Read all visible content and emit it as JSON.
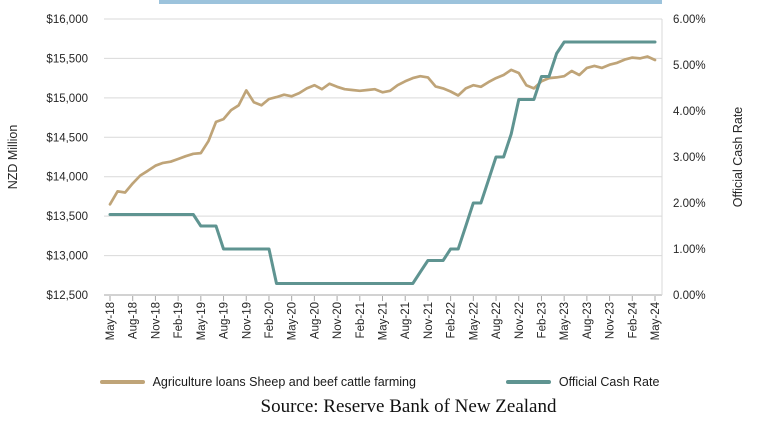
{
  "window": {
    "background": "#ffffff"
  },
  "header_bar": {
    "color": "#9cc3dc"
  },
  "chart_data": {
    "type": "line",
    "title": "",
    "x": {
      "frequency": "monthly",
      "start_label": "May-18",
      "end_label": "May-24",
      "tick_labels": [
        "May-18",
        "Aug-18",
        "Nov-18",
        "Feb-19",
        "May-19",
        "Aug-19",
        "Nov-19",
        "Feb-20",
        "May-20",
        "Aug-20",
        "Nov-20",
        "Feb-21",
        "May-21",
        "Aug-21",
        "Nov-21",
        "Feb-22",
        "May-22",
        "Aug-22",
        "Nov-22",
        "Feb-23",
        "May-23",
        "Aug-23",
        "Nov-23",
        "Feb-24",
        "May-24"
      ]
    },
    "left_axis": {
      "title": "NZD Million",
      "min": 12500,
      "max": 16000,
      "step": 500,
      "tick_labels": [
        "$16,000",
        "$15,500",
        "$15,000",
        "$14,500",
        "$14,000",
        "$13,500",
        "$13,000",
        "$12,500"
      ]
    },
    "right_axis": {
      "title": "Official Cash Rate",
      "min": 0,
      "max": 6,
      "step": 1,
      "tick_labels": [
        "6.00%",
        "5.00%",
        "4.00%",
        "3.00%",
        "2.00%",
        "1.00%",
        "0.00%"
      ]
    },
    "grid": true,
    "legend_position": "bottom",
    "series": [
      {
        "name": "Agriculture loans Sheep and beef cattle farming",
        "axis": "left",
        "color": "#bfa478",
        "values": [
          13650,
          13815,
          13800,
          13915,
          14015,
          14075,
          14140,
          14175,
          14190,
          14225,
          14260,
          14290,
          14300,
          14450,
          14695,
          14730,
          14845,
          14905,
          15095,
          14945,
          14905,
          14985,
          15010,
          15040,
          15020,
          15060,
          15120,
          15160,
          15110,
          15180,
          15140,
          15110,
          15100,
          15090,
          15100,
          15110,
          15070,
          15090,
          15160,
          15210,
          15250,
          15275,
          15260,
          15145,
          15120,
          15080,
          15030,
          15120,
          15160,
          15140,
          15200,
          15250,
          15290,
          15355,
          15315,
          15160,
          15120,
          15210,
          15250,
          15260,
          15275,
          15340,
          15290,
          15380,
          15405,
          15380,
          15420,
          15445,
          15485,
          15510,
          15500,
          15525,
          15480
        ]
      },
      {
        "name": "Official Cash Rate",
        "axis": "right",
        "color": "#5f9491",
        "values": [
          1.75,
          1.75,
          1.75,
          1.75,
          1.75,
          1.75,
          1.75,
          1.75,
          1.75,
          1.75,
          1.75,
          1.75,
          1.5,
          1.5,
          1.5,
          1.0,
          1.0,
          1.0,
          1.0,
          1.0,
          1.0,
          1.0,
          0.25,
          0.25,
          0.25,
          0.25,
          0.25,
          0.25,
          0.25,
          0.25,
          0.25,
          0.25,
          0.25,
          0.25,
          0.25,
          0.25,
          0.25,
          0.25,
          0.25,
          0.25,
          0.25,
          0.5,
          0.75,
          0.75,
          0.75,
          1.0,
          1.0,
          1.5,
          2.0,
          2.0,
          2.5,
          3.0,
          3.0,
          3.5,
          4.25,
          4.25,
          4.25,
          4.75,
          4.75,
          5.25,
          5.5,
          5.5,
          5.5,
          5.5,
          5.5,
          5.5,
          5.5,
          5.5,
          5.5,
          5.5,
          5.5,
          5.5,
          5.5
        ]
      }
    ]
  },
  "colors": {
    "gridline": "#d9d9d9",
    "axis": "#a6a6a6",
    "tick": "#a6a6a6",
    "text": "#262626"
  },
  "source": {
    "text": "Source: Reserve Bank of New Zealand"
  }
}
